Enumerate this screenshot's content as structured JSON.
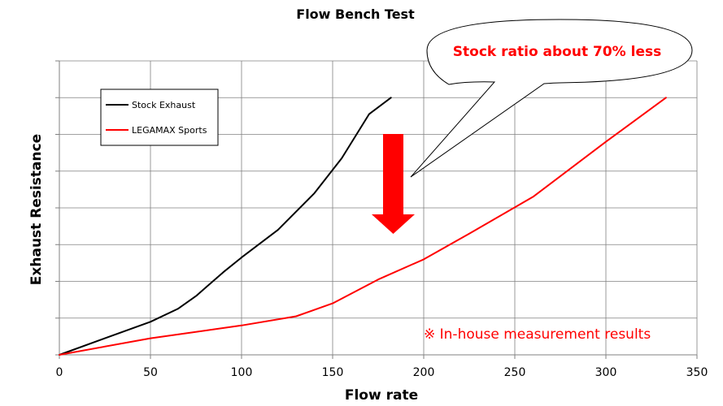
{
  "chart_data": {
    "type": "line",
    "title": "Flow Bench Test",
    "xlabel": "Flow rate",
    "ylabel": "Exhaust Resistance",
    "xlim": [
      0,
      350
    ],
    "ylim": [
      0,
      8
    ],
    "xticks": [
      0,
      50,
      100,
      150,
      200,
      250,
      300,
      350
    ],
    "y_tick_labels_shown": false,
    "grid": "horizontal",
    "legend_position": "top-left",
    "series": [
      {
        "name": "Stock Exhaust",
        "color": "#000000",
        "x": [
          0,
          25,
          50,
          65,
          75,
          90,
          100,
          120,
          140,
          155,
          170,
          182
        ],
        "y": [
          0,
          0.45,
          0.9,
          1.25,
          1.6,
          2.25,
          2.65,
          3.4,
          4.4,
          5.35,
          6.55,
          7.0
        ]
      },
      {
        "name": "LEGAMAX Sports",
        "color": "#ff0000",
        "x": [
          0,
          50,
          100,
          130,
          150,
          175,
          200,
          225,
          260,
          300,
          333
        ],
        "y": [
          0,
          0.45,
          0.8,
          1.05,
          1.4,
          2.05,
          2.6,
          3.3,
          4.3,
          5.8,
          7.0
        ]
      }
    ],
    "annotations": {
      "callout": "Stock ratio about 70% less",
      "note": "※ In-house measurement results"
    }
  },
  "colors": {
    "axis": "#808080",
    "grid": "#808080",
    "arrow": "#ff0000",
    "callout_text": "#ff0000"
  }
}
